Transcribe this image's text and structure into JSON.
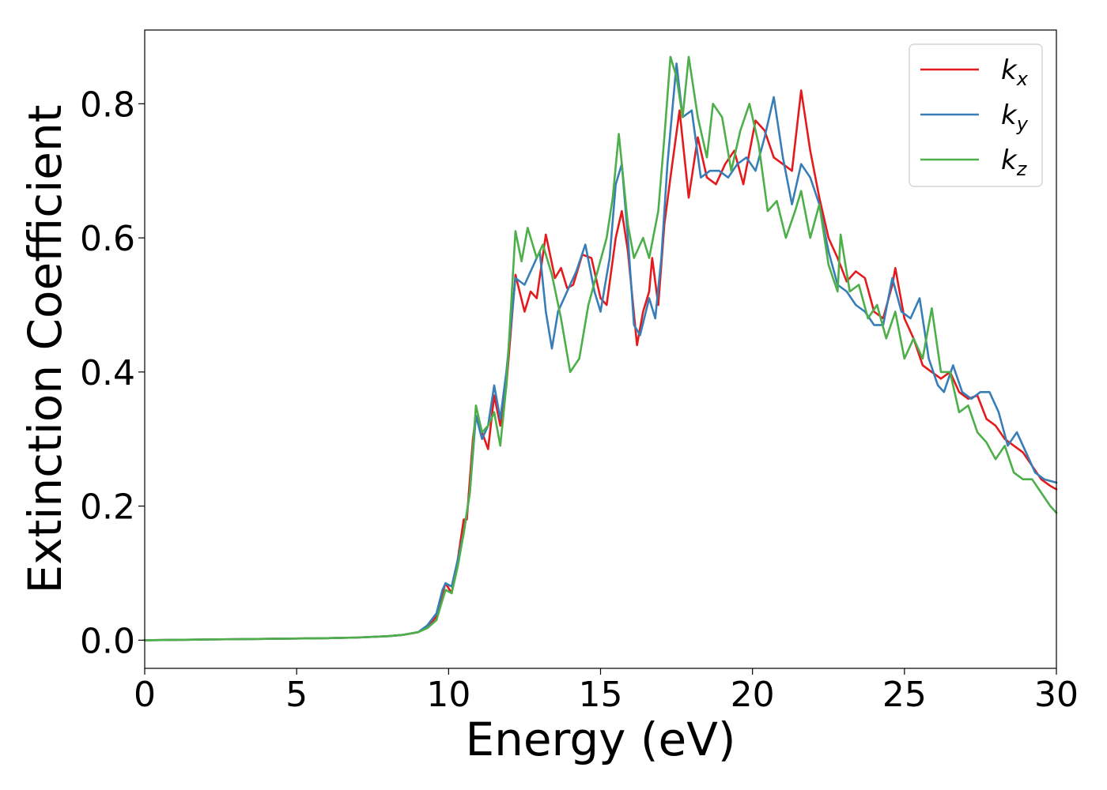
{
  "chart_data": {
    "type": "line",
    "title": "",
    "xlabel": "Energy (eV)",
    "ylabel": "Extinction Coefficient",
    "xlim": [
      0,
      30
    ],
    "ylim": [
      -0.042,
      0.91
    ],
    "xticks": [
      0,
      5,
      10,
      15,
      20,
      25,
      30
    ],
    "xtick_labels": [
      "0",
      "5",
      "10",
      "15",
      "20",
      "25",
      "30"
    ],
    "yticks": [
      0.0,
      0.2,
      0.4,
      0.6,
      0.8
    ],
    "ytick_labels": [
      "0.0",
      "0.2",
      "0.4",
      "0.6",
      "0.8"
    ],
    "grid": false,
    "legend_position": "top-right",
    "series": [
      {
        "name": "k_x",
        "label_main": "k",
        "label_sub": "x",
        "color": "#e41a1c",
        "points": [
          [
            0,
            0.0
          ],
          [
            2,
            0.001
          ],
          [
            4,
            0.002
          ],
          [
            6,
            0.003
          ],
          [
            7,
            0.004
          ],
          [
            8,
            0.006
          ],
          [
            8.5,
            0.008
          ],
          [
            9,
            0.012
          ],
          [
            9.3,
            0.02
          ],
          [
            9.6,
            0.035
          ],
          [
            9.8,
            0.07
          ],
          [
            9.9,
            0.085
          ],
          [
            10.1,
            0.07
          ],
          [
            10.3,
            0.12
          ],
          [
            10.5,
            0.18
          ],
          [
            10.6,
            0.18
          ],
          [
            10.8,
            0.3
          ],
          [
            10.9,
            0.335
          ],
          [
            11.1,
            0.31
          ],
          [
            11.3,
            0.285
          ],
          [
            11.5,
            0.365
          ],
          [
            11.7,
            0.32
          ],
          [
            11.9,
            0.38
          ],
          [
            12.2,
            0.545
          ],
          [
            12.5,
            0.49
          ],
          [
            12.7,
            0.52
          ],
          [
            12.9,
            0.51
          ],
          [
            13.2,
            0.605
          ],
          [
            13.5,
            0.54
          ],
          [
            13.7,
            0.555
          ],
          [
            13.9,
            0.525
          ],
          [
            14.1,
            0.53
          ],
          [
            14.4,
            0.575
          ],
          [
            14.7,
            0.57
          ],
          [
            15.0,
            0.51
          ],
          [
            15.2,
            0.5
          ],
          [
            15.5,
            0.6
          ],
          [
            15.7,
            0.64
          ],
          [
            15.9,
            0.58
          ],
          [
            16.2,
            0.44
          ],
          [
            16.4,
            0.49
          ],
          [
            16.6,
            0.52
          ],
          [
            16.7,
            0.57
          ],
          [
            16.9,
            0.5
          ],
          [
            17.1,
            0.62
          ],
          [
            17.3,
            0.69
          ],
          [
            17.6,
            0.79
          ],
          [
            17.9,
            0.66
          ],
          [
            18.2,
            0.75
          ],
          [
            18.5,
            0.69
          ],
          [
            18.8,
            0.68
          ],
          [
            19.1,
            0.71
          ],
          [
            19.4,
            0.73
          ],
          [
            19.7,
            0.68
          ],
          [
            20.1,
            0.775
          ],
          [
            20.4,
            0.76
          ],
          [
            20.7,
            0.72
          ],
          [
            21.0,
            0.71
          ],
          [
            21.3,
            0.7
          ],
          [
            21.6,
            0.82
          ],
          [
            21.9,
            0.73
          ],
          [
            22.2,
            0.66
          ],
          [
            22.5,
            0.6
          ],
          [
            22.8,
            0.57
          ],
          [
            23.1,
            0.535
          ],
          [
            23.4,
            0.55
          ],
          [
            23.7,
            0.54
          ],
          [
            24.0,
            0.49
          ],
          [
            24.3,
            0.48
          ],
          [
            24.6,
            0.53
          ],
          [
            24.7,
            0.555
          ],
          [
            25.0,
            0.48
          ],
          [
            25.3,
            0.45
          ],
          [
            25.6,
            0.41
          ],
          [
            25.9,
            0.4
          ],
          [
            26.2,
            0.39
          ],
          [
            26.5,
            0.4
          ],
          [
            26.8,
            0.37
          ],
          [
            27.1,
            0.36
          ],
          [
            27.4,
            0.365
          ],
          [
            27.7,
            0.33
          ],
          [
            28.0,
            0.32
          ],
          [
            28.3,
            0.3
          ],
          [
            28.6,
            0.29
          ],
          [
            28.9,
            0.28
          ],
          [
            29.2,
            0.26
          ],
          [
            29.5,
            0.24
          ],
          [
            29.8,
            0.23
          ],
          [
            30.0,
            0.225
          ]
        ]
      },
      {
        "name": "k_y",
        "label_main": "k",
        "label_sub": "y",
        "color": "#377eb8",
        "points": [
          [
            0,
            0.0
          ],
          [
            2,
            0.001
          ],
          [
            4,
            0.002
          ],
          [
            6,
            0.003
          ],
          [
            7,
            0.004
          ],
          [
            8,
            0.006
          ],
          [
            8.5,
            0.008
          ],
          [
            9,
            0.012
          ],
          [
            9.3,
            0.022
          ],
          [
            9.6,
            0.04
          ],
          [
            9.8,
            0.075
          ],
          [
            9.9,
            0.085
          ],
          [
            10.1,
            0.08
          ],
          [
            10.3,
            0.12
          ],
          [
            10.5,
            0.16
          ],
          [
            10.7,
            0.22
          ],
          [
            10.9,
            0.335
          ],
          [
            11.1,
            0.3
          ],
          [
            11.3,
            0.32
          ],
          [
            11.5,
            0.38
          ],
          [
            11.7,
            0.33
          ],
          [
            11.9,
            0.4
          ],
          [
            12.2,
            0.54
          ],
          [
            12.5,
            0.53
          ],
          [
            12.8,
            0.56
          ],
          [
            13.0,
            0.58
          ],
          [
            13.2,
            0.49
          ],
          [
            13.4,
            0.435
          ],
          [
            13.6,
            0.49
          ],
          [
            13.9,
            0.52
          ],
          [
            14.2,
            0.55
          ],
          [
            14.5,
            0.59
          ],
          [
            14.8,
            0.52
          ],
          [
            15.0,
            0.49
          ],
          [
            15.3,
            0.57
          ],
          [
            15.5,
            0.68
          ],
          [
            15.7,
            0.71
          ],
          [
            15.9,
            0.6
          ],
          [
            16.1,
            0.47
          ],
          [
            16.3,
            0.455
          ],
          [
            16.6,
            0.51
          ],
          [
            16.8,
            0.48
          ],
          [
            17.0,
            0.57
          ],
          [
            17.2,
            0.71
          ],
          [
            17.5,
            0.86
          ],
          [
            17.7,
            0.78
          ],
          [
            18.0,
            0.79
          ],
          [
            18.3,
            0.69
          ],
          [
            18.6,
            0.7
          ],
          [
            18.9,
            0.7
          ],
          [
            19.2,
            0.69
          ],
          [
            19.5,
            0.71
          ],
          [
            19.8,
            0.72
          ],
          [
            20.1,
            0.7
          ],
          [
            20.4,
            0.75
          ],
          [
            20.7,
            0.81
          ],
          [
            21.0,
            0.72
          ],
          [
            21.3,
            0.65
          ],
          [
            21.6,
            0.71
          ],
          [
            21.9,
            0.69
          ],
          [
            22.2,
            0.65
          ],
          [
            22.5,
            0.58
          ],
          [
            22.8,
            0.53
          ],
          [
            23.1,
            0.52
          ],
          [
            23.4,
            0.5
          ],
          [
            23.7,
            0.49
          ],
          [
            24.0,
            0.47
          ],
          [
            24.3,
            0.47
          ],
          [
            24.6,
            0.54
          ],
          [
            24.9,
            0.49
          ],
          [
            25.2,
            0.48
          ],
          [
            25.5,
            0.51
          ],
          [
            25.8,
            0.42
          ],
          [
            26.1,
            0.38
          ],
          [
            26.3,
            0.37
          ],
          [
            26.6,
            0.41
          ],
          [
            26.9,
            0.37
          ],
          [
            27.2,
            0.36
          ],
          [
            27.5,
            0.37
          ],
          [
            27.8,
            0.37
          ],
          [
            28.1,
            0.34
          ],
          [
            28.4,
            0.29
          ],
          [
            28.7,
            0.31
          ],
          [
            29.0,
            0.28
          ],
          [
            29.3,
            0.25
          ],
          [
            29.6,
            0.24
          ],
          [
            30.0,
            0.235
          ]
        ]
      },
      {
        "name": "k_z",
        "label_main": "k",
        "label_sub": "z",
        "color": "#4daf4a",
        "points": [
          [
            0,
            0.0
          ],
          [
            2,
            0.001
          ],
          [
            4,
            0.002
          ],
          [
            6,
            0.003
          ],
          [
            7,
            0.004
          ],
          [
            8,
            0.006
          ],
          [
            8.5,
            0.008
          ],
          [
            9,
            0.012
          ],
          [
            9.3,
            0.018
          ],
          [
            9.6,
            0.03
          ],
          [
            9.8,
            0.06
          ],
          [
            9.9,
            0.075
          ],
          [
            10.1,
            0.07
          ],
          [
            10.3,
            0.11
          ],
          [
            10.5,
            0.16
          ],
          [
            10.7,
            0.22
          ],
          [
            10.9,
            0.35
          ],
          [
            11.1,
            0.31
          ],
          [
            11.3,
            0.32
          ],
          [
            11.5,
            0.34
          ],
          [
            11.7,
            0.29
          ],
          [
            11.9,
            0.38
          ],
          [
            12.2,
            0.61
          ],
          [
            12.4,
            0.565
          ],
          [
            12.6,
            0.615
          ],
          [
            12.9,
            0.57
          ],
          [
            13.1,
            0.59
          ],
          [
            13.4,
            0.545
          ],
          [
            13.7,
            0.48
          ],
          [
            14.0,
            0.4
          ],
          [
            14.3,
            0.42
          ],
          [
            14.6,
            0.5
          ],
          [
            14.9,
            0.55
          ],
          [
            15.2,
            0.6
          ],
          [
            15.4,
            0.66
          ],
          [
            15.6,
            0.755
          ],
          [
            15.9,
            0.62
          ],
          [
            16.1,
            0.57
          ],
          [
            16.4,
            0.6
          ],
          [
            16.6,
            0.57
          ],
          [
            16.9,
            0.64
          ],
          [
            17.1,
            0.75
          ],
          [
            17.3,
            0.87
          ],
          [
            17.5,
            0.84
          ],
          [
            17.7,
            0.78
          ],
          [
            17.9,
            0.87
          ],
          [
            18.2,
            0.78
          ],
          [
            18.5,
            0.72
          ],
          [
            18.7,
            0.8
          ],
          [
            19.0,
            0.78
          ],
          [
            19.3,
            0.7
          ],
          [
            19.6,
            0.76
          ],
          [
            19.9,
            0.8
          ],
          [
            20.2,
            0.74
          ],
          [
            20.5,
            0.64
          ],
          [
            20.8,
            0.655
          ],
          [
            21.1,
            0.6
          ],
          [
            21.4,
            0.64
          ],
          [
            21.6,
            0.67
          ],
          [
            21.9,
            0.6
          ],
          [
            22.2,
            0.65
          ],
          [
            22.5,
            0.56
          ],
          [
            22.8,
            0.52
          ],
          [
            22.9,
            0.605
          ],
          [
            23.2,
            0.52
          ],
          [
            23.5,
            0.53
          ],
          [
            23.8,
            0.48
          ],
          [
            24.1,
            0.5
          ],
          [
            24.4,
            0.45
          ],
          [
            24.7,
            0.49
          ],
          [
            25.0,
            0.42
          ],
          [
            25.3,
            0.45
          ],
          [
            25.6,
            0.42
          ],
          [
            25.9,
            0.495
          ],
          [
            26.2,
            0.4
          ],
          [
            26.5,
            0.4
          ],
          [
            26.8,
            0.34
          ],
          [
            27.1,
            0.35
          ],
          [
            27.4,
            0.31
          ],
          [
            27.7,
            0.295
          ],
          [
            28.0,
            0.27
          ],
          [
            28.3,
            0.29
          ],
          [
            28.6,
            0.25
          ],
          [
            28.9,
            0.24
          ],
          [
            29.2,
            0.24
          ],
          [
            29.5,
            0.22
          ],
          [
            29.8,
            0.2
          ],
          [
            30.0,
            0.19
          ]
        ]
      }
    ]
  }
}
